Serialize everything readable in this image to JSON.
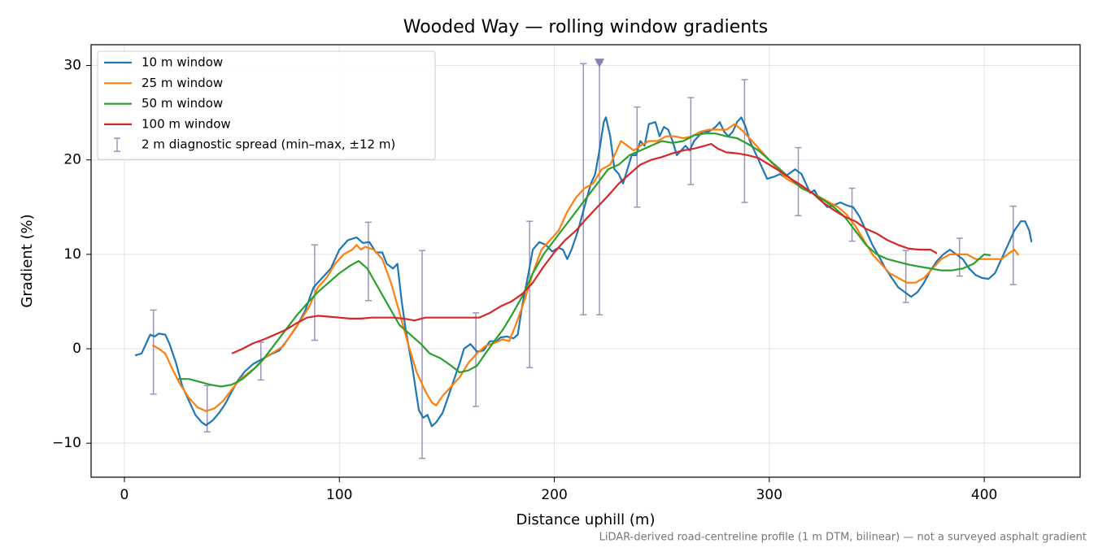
{
  "chart_data": {
    "type": "line",
    "title": "Wooded Way — rolling window gradients",
    "x_label": "Distance uphill (m)",
    "y_label": "Gradient (%)",
    "footnote": "LiDAR-derived road-centreline profile (1 m DTM, bilinear) — not a surveyed asphalt gradient",
    "xlim": [
      -15.5,
      444.6
    ],
    "ylim": [
      -13.6,
      32.2
    ],
    "xticks": [
      0,
      100,
      200,
      300,
      400
    ],
    "yticks": [
      {
        "value": -10,
        "label": "−10"
      },
      0,
      10,
      20,
      30
    ],
    "grid": true,
    "legend": "upper left",
    "series": [
      {
        "name": "10 m window",
        "color": "#1f77b4",
        "x": [
          5,
          8,
          10,
          12,
          14,
          16,
          19,
          21,
          24,
          27,
          30,
          33,
          36,
          38,
          41,
          44,
          47,
          50,
          53,
          56,
          60,
          64,
          68,
          72,
          76,
          80,
          84,
          88,
          92,
          96,
          100,
          104,
          108,
          111,
          114,
          117,
          120,
          122,
          125,
          127,
          129,
          131,
          134,
          137,
          139,
          141,
          143,
          145,
          148,
          150,
          153,
          156,
          158,
          161,
          164,
          167,
          170,
          173,
          175,
          178,
          181,
          183,
          185,
          188,
          190,
          193,
          196,
          199,
          202,
          204,
          206,
          208,
          211,
          214,
          217,
          219,
          221,
          223,
          224,
          226,
          228,
          230,
          232,
          234,
          236,
          238,
          240,
          242,
          244,
          247,
          249,
          251,
          253,
          255,
          257,
          259,
          261,
          263,
          265,
          267,
          269,
          272,
          275,
          277,
          279,
          281,
          283,
          285,
          287,
          289,
          291,
          293,
          295,
          297,
          299,
          302,
          305,
          307,
          309,
          312,
          315,
          317,
          319,
          321,
          323,
          325,
          327,
          330,
          333,
          336,
          339,
          342,
          345,
          348,
          351,
          354,
          357,
          360,
          363,
          366,
          369,
          372,
          375,
          378,
          381,
          384,
          387,
          390,
          393,
          396,
          399,
          402,
          405,
          408,
          411,
          414,
          417,
          419,
          421,
          422
        ],
        "values": [
          -0.7,
          -0.5,
          0.5,
          1.5,
          1.3,
          1.6,
          1.5,
          0.5,
          -1.5,
          -4,
          -5.5,
          -7,
          -7.8,
          -8.1,
          -7.6,
          -6.8,
          -5.8,
          -4.5,
          -3.3,
          -2.4,
          -1.6,
          -1.1,
          -0.6,
          -0.2,
          1,
          2.3,
          4,
          6.5,
          7.5,
          8.5,
          10.5,
          11.5,
          11.8,
          11.2,
          11.3,
          10.2,
          10.2,
          9,
          8.5,
          9,
          5,
          1.8,
          -2,
          -6.5,
          -7.3,
          -7,
          -8.2,
          -7.8,
          -6.8,
          -5.5,
          -3.5,
          -1.5,
          0,
          0.5,
          -0.3,
          -0.2,
          0.8,
          0.8,
          1.2,
          1.3,
          1.1,
          1.5,
          4.5,
          8,
          10.5,
          11.3,
          11,
          10.3,
          10.7,
          10.5,
          9.5,
          10.5,
          12.5,
          15,
          17.5,
          18.5,
          21,
          24,
          24.5,
          22.5,
          19,
          18.5,
          17.5,
          19,
          20.5,
          20.5,
          22,
          21.5,
          23.8,
          24,
          22.5,
          23.5,
          23.2,
          22,
          20.5,
          21,
          21.5,
          21,
          22,
          22.5,
          23,
          23,
          23.5,
          24,
          23,
          22.5,
          23,
          24,
          24.5,
          23.5,
          22,
          21,
          20,
          19,
          18,
          18.2,
          18.5,
          18.2,
          18.5,
          19,
          18.5,
          17.5,
          16.5,
          16.8,
          16,
          15.5,
          15,
          15.2,
          15.5,
          15.2,
          15,
          14,
          12.5,
          11,
          9.8,
          8.5,
          7.5,
          6.5,
          6,
          5.5,
          6,
          7,
          8.3,
          9.3,
          10,
          10.5,
          10,
          9.5,
          8.5,
          7.8,
          7.5,
          7.4,
          8,
          9.5,
          11,
          12.5,
          13.5,
          13.5,
          12.5,
          11.3
        ]
      },
      {
        "name": "25 m window",
        "color": "#ff7f0e",
        "x": [
          13,
          16,
          19,
          22,
          26,
          30,
          34,
          38,
          42,
          46,
          50,
          54,
          58,
          62,
          66,
          70,
          74,
          78,
          82,
          86,
          90,
          94,
          98,
          102,
          106,
          108,
          110,
          112,
          116,
          120,
          124,
          128,
          132,
          136,
          140,
          143,
          145,
          148,
          152,
          156,
          160,
          164,
          168,
          172,
          176,
          179,
          182,
          186,
          190,
          194,
          198,
          202,
          206,
          210,
          214,
          218,
          222,
          226,
          229,
          231,
          234,
          237,
          240,
          244,
          248,
          252,
          256,
          260,
          264,
          268,
          272,
          276,
          280,
          284,
          288,
          292,
          296,
          300,
          304,
          308,
          312,
          316,
          320,
          324,
          328,
          332,
          336,
          340,
          344,
          348,
          352,
          356,
          360,
          364,
          368,
          372,
          376,
          380,
          384,
          388,
          392,
          396,
          400,
          404,
          408,
          412,
          414,
          416
        ],
        "values": [
          0.4,
          0,
          -0.5,
          -2,
          -3.8,
          -5.2,
          -6.2,
          -6.6,
          -6.3,
          -5.5,
          -4.3,
          -3.2,
          -2.5,
          -1.8,
          -0.8,
          -0.3,
          0.3,
          1.7,
          3,
          4.5,
          6.5,
          7.5,
          9,
          10,
          10.5,
          11,
          10.5,
          10.8,
          10.5,
          9.5,
          7,
          3.8,
          0.5,
          -2.5,
          -4.5,
          -5.7,
          -6,
          -5,
          -4,
          -3,
          -1.5,
          -0.5,
          0.3,
          0.6,
          1,
          0.8,
          2.5,
          5,
          8,
          10.5,
          11.5,
          12.5,
          14.5,
          16,
          17,
          17.5,
          19,
          19.5,
          21,
          22,
          21.5,
          21,
          21.5,
          22,
          22,
          22.5,
          22.5,
          22.3,
          22.5,
          23,
          23.2,
          23.2,
          23.2,
          23.8,
          23,
          22,
          21,
          20,
          19,
          18,
          17.5,
          17,
          16.5,
          16,
          15.5,
          15,
          14.2,
          13,
          11.5,
          10,
          9,
          8,
          7.5,
          7,
          7,
          7.5,
          8.5,
          9.5,
          10,
          10,
          10,
          9.5,
          9.5,
          9.5,
          9.5,
          10.2,
          10.5,
          9.9
        ]
      },
      {
        "name": "50 m window",
        "color": "#2ca02c",
        "x": [
          25,
          30,
          35,
          40,
          45,
          50,
          55,
          60,
          65,
          70,
          75,
          80,
          85,
          90,
          95,
          100,
          105,
          109,
          113,
          118,
          123,
          128,
          133,
          138,
          142,
          147,
          152,
          156,
          160,
          164,
          168,
          172,
          176,
          180,
          185,
          190,
          195,
          200,
          205,
          210,
          215,
          220,
          225,
          230,
          235,
          240,
          245,
          250,
          255,
          260,
          265,
          270,
          275,
          280,
          285,
          290,
          295,
          300,
          305,
          310,
          315,
          320,
          325,
          330,
          335,
          340,
          345,
          350,
          355,
          360,
          365,
          370,
          375,
          380,
          385,
          390,
          395,
          400,
          403
        ],
        "values": [
          -3.2,
          -3.2,
          -3.5,
          -3.8,
          -4,
          -3.8,
          -3.2,
          -2.2,
          -1,
          0.5,
          2,
          3.5,
          4.8,
          6,
          7,
          8,
          8.8,
          9.3,
          8.5,
          6.5,
          4.5,
          2.5,
          1.5,
          0.5,
          -0.5,
          -1,
          -1.8,
          -2.5,
          -2.3,
          -1.8,
          -0.5,
          0.8,
          2,
          3.5,
          5.5,
          8,
          10,
          11.5,
          13,
          14.5,
          16,
          17.5,
          19,
          19.5,
          20.5,
          21,
          21.5,
          22,
          21.8,
          22,
          22.6,
          22.8,
          22.8,
          22.5,
          22.3,
          21.7,
          21,
          20,
          19,
          18,
          17,
          16.5,
          15.8,
          15,
          14,
          12.5,
          11,
          10,
          9.5,
          9.2,
          8.9,
          8.7,
          8.5,
          8.3,
          8.3,
          8.5,
          9,
          10,
          9.9
        ]
      },
      {
        "name": "100 m window",
        "color": "#d62728",
        "x": [
          50,
          55,
          60,
          65,
          70,
          75,
          80,
          85,
          90,
          95,
          100,
          105,
          110,
          115,
          120,
          125,
          130,
          135,
          140,
          145,
          150,
          155,
          160,
          165,
          170,
          175,
          180,
          185,
          190,
          195,
          200,
          205,
          210,
          215,
          220,
          225,
          230,
          235,
          240,
          245,
          250,
          255,
          260,
          265,
          270,
          273,
          276,
          280,
          285,
          290,
          295,
          300,
          305,
          310,
          315,
          320,
          325,
          330,
          335,
          340,
          345,
          350,
          355,
          360,
          365,
          370,
          375,
          378
        ],
        "values": [
          -0.5,
          0,
          0.6,
          1,
          1.5,
          2,
          2.7,
          3.3,
          3.5,
          3.4,
          3.3,
          3.2,
          3.2,
          3.3,
          3.3,
          3.3,
          3.2,
          3,
          3.3,
          3.3,
          3.3,
          3.3,
          3.3,
          3.3,
          3.8,
          4.5,
          5,
          5.8,
          7,
          8.7,
          10.2,
          11.5,
          12.5,
          13.8,
          15,
          16.2,
          17.5,
          18.5,
          19.5,
          20,
          20.3,
          20.7,
          21,
          21.2,
          21.5,
          21.7,
          21.2,
          20.8,
          20.7,
          20.5,
          20.2,
          19.5,
          18.8,
          18,
          17.3,
          16.5,
          15.5,
          14.7,
          14,
          13.5,
          12.7,
          12.2,
          11.5,
          11,
          10.6,
          10.5,
          10.5,
          10.1
        ]
      },
      {
        "name": "2 m diagnostic spread (min–max, ±12 m)",
        "color": "#9a94bc",
        "type": "errorbar",
        "x": [
          13.5,
          38.5,
          63.5,
          88.5,
          113.5,
          138.5,
          163.5,
          188.5,
          213.5,
          221,
          238.5,
          263.5,
          288.5,
          313.5,
          338.5,
          363.5,
          388.5,
          413.5
        ],
        "low": [
          -4.8,
          -8.8,
          -3.3,
          0.9,
          5.1,
          -11.6,
          -6.1,
          -2,
          3.6,
          3.6,
          15,
          17.4,
          15.5,
          14.1,
          11.4,
          4.9,
          7.7,
          6.8
        ],
        "high": [
          4.1,
          -3.9,
          0.7,
          11,
          13.4,
          10.4,
          3.8,
          13.5,
          30.2,
          30.3,
          25.6,
          26.6,
          28.5,
          21.3,
          17,
          10.4,
          11.7,
          15.1
        ]
      }
    ],
    "markers": [
      {
        "x": 221,
        "y": 30.3,
        "color": "#8a7fb0"
      }
    ]
  }
}
